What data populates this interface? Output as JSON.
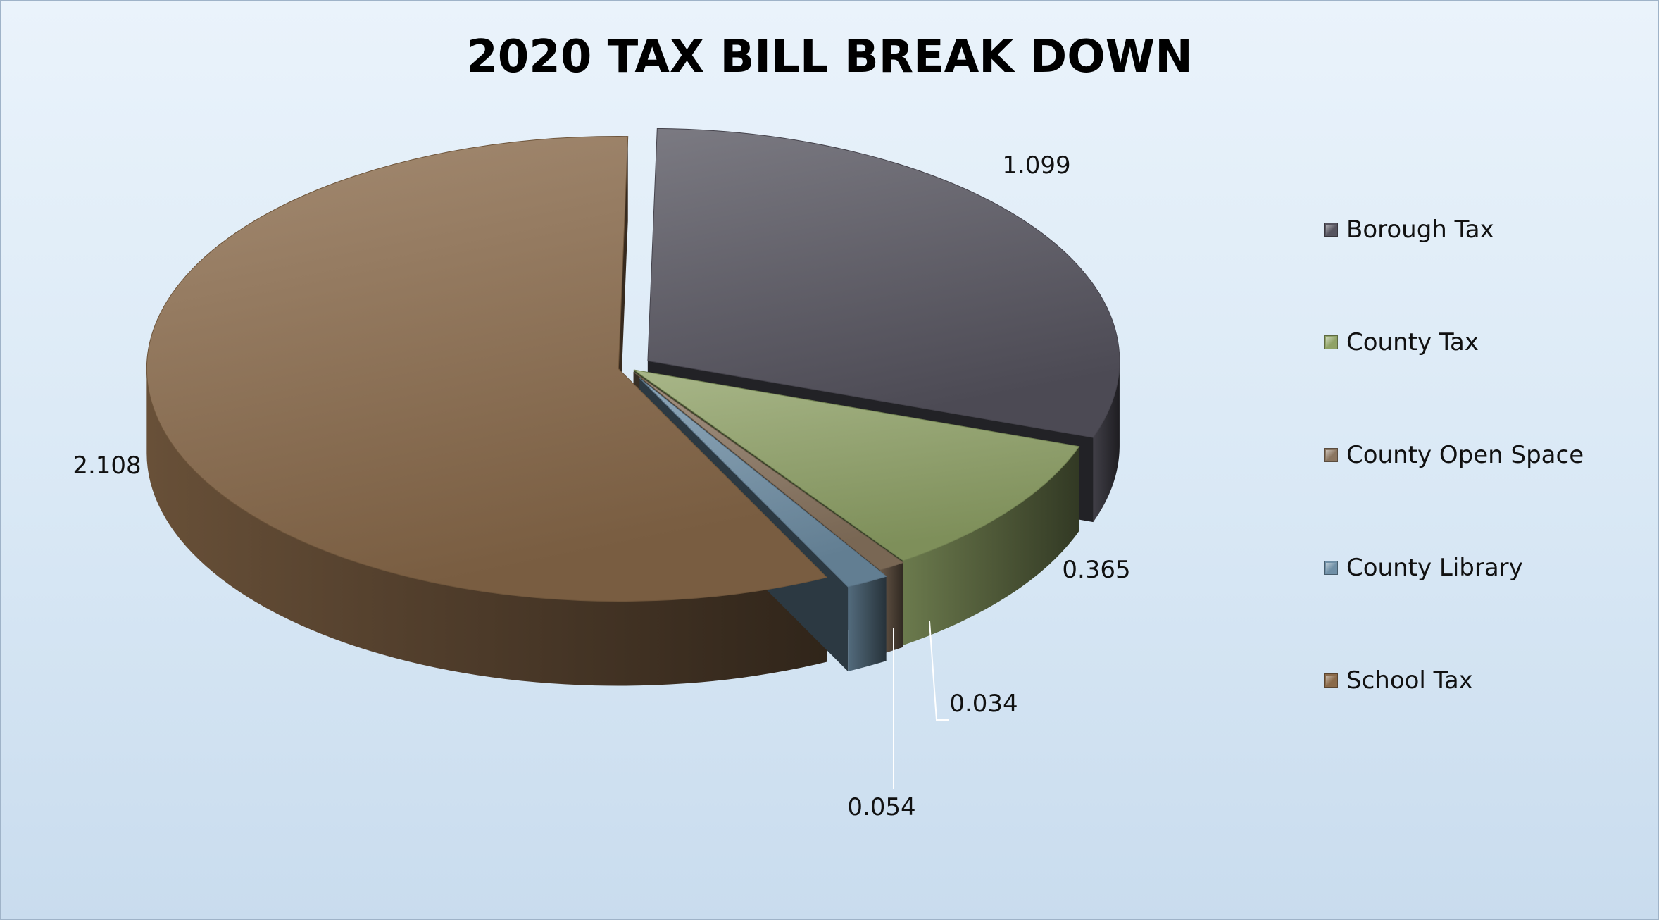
{
  "chart_data": {
    "type": "pie",
    "title": "2020 TAX BILL BREAK DOWN",
    "categories": [
      "Borough Tax",
      "County Tax",
      "County Open Space",
      "County Library",
      "School Tax"
    ],
    "values": [
      1.099,
      0.365,
      0.034,
      0.054,
      2.108
    ],
    "data_labels": [
      "1.099",
      "0.365",
      "0.034",
      "0.054",
      "2.108"
    ],
    "colors": [
      "#56545f",
      "#8fa266",
      "#8a7560",
      "#6f8fa6",
      "#8a6a4a"
    ],
    "legend": {
      "position": "right",
      "entries": [
        "Borough Tax",
        "County Tax",
        "County Open Space",
        "County Library",
        "School Tax"
      ]
    },
    "style": "3d-exploded"
  }
}
